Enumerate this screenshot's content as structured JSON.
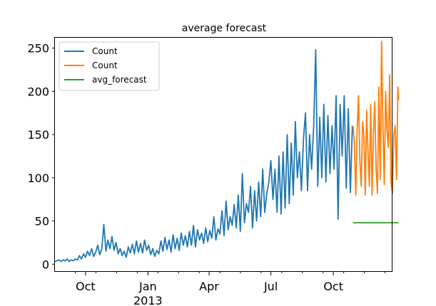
{
  "chart_data": {
    "type": "line",
    "title": "average forecast",
    "xlabel": "",
    "ylabel": "",
    "ylim": [
      -8,
      262
    ],
    "yticks": [
      0,
      50,
      100,
      150,
      200,
      250
    ],
    "x_range_days": [
      -15,
      481
    ],
    "xticks": [
      {
        "day": 30,
        "label": "Oct"
      },
      {
        "day": 122,
        "label": "Jan",
        "sublabel": "2013"
      },
      {
        "day": 212,
        "label": "Apr"
      },
      {
        "day": 303,
        "label": "Jul"
      },
      {
        "day": 395,
        "label": "Oct"
      }
    ],
    "x_start_date": "2012-08-16",
    "legend": {
      "position": "top-left",
      "entries": [
        "Count",
        "Count",
        "avg_forecast"
      ]
    },
    "grid": false,
    "series": [
      {
        "name": "Count",
        "color": "#1f77b4",
        "points": [
          [
            -15,
            3
          ],
          [
            -12,
            4
          ],
          [
            -9,
            5
          ],
          [
            -6,
            3
          ],
          [
            -3,
            5
          ],
          [
            0,
            4
          ],
          [
            3,
            6
          ],
          [
            6,
            3
          ],
          [
            9,
            5
          ],
          [
            12,
            4
          ],
          [
            15,
            6
          ],
          [
            18,
            5
          ],
          [
            21,
            10
          ],
          [
            24,
            6
          ],
          [
            27,
            12
          ],
          [
            30,
            8
          ],
          [
            33,
            15
          ],
          [
            36,
            10
          ],
          [
            39,
            18
          ],
          [
            42,
            9
          ],
          [
            45,
            14
          ],
          [
            48,
            22
          ],
          [
            51,
            11
          ],
          [
            54,
            18
          ],
          [
            57,
            46
          ],
          [
            60,
            15
          ],
          [
            63,
            28
          ],
          [
            66,
            18
          ],
          [
            69,
            32
          ],
          [
            72,
            16
          ],
          [
            75,
            25
          ],
          [
            78,
            12
          ],
          [
            81,
            18
          ],
          [
            84,
            10
          ],
          [
            87,
            15
          ],
          [
            90,
            8
          ],
          [
            93,
            20
          ],
          [
            96,
            13
          ],
          [
            99,
            23
          ],
          [
            102,
            12
          ],
          [
            105,
            27
          ],
          [
            108,
            14
          ],
          [
            111,
            24
          ],
          [
            114,
            13
          ],
          [
            117,
            28
          ],
          [
            120,
            16
          ],
          [
            123,
            22
          ],
          [
            126,
            11
          ],
          [
            129,
            18
          ],
          [
            132,
            9
          ],
          [
            135,
            16
          ],
          [
            138,
            12
          ],
          [
            141,
            27
          ],
          [
            144,
            15
          ],
          [
            147,
            31
          ],
          [
            150,
            17
          ],
          [
            153,
            28
          ],
          [
            156,
            14
          ],
          [
            159,
            34
          ],
          [
            162,
            18
          ],
          [
            165,
            30
          ],
          [
            168,
            16
          ],
          [
            171,
            36
          ],
          [
            174,
            22
          ],
          [
            177,
            33
          ],
          [
            180,
            20
          ],
          [
            183,
            38
          ],
          [
            186,
            22
          ],
          [
            189,
            45
          ],
          [
            192,
            20
          ],
          [
            195,
            40
          ],
          [
            198,
            28
          ],
          [
            201,
            36
          ],
          [
            204,
            24
          ],
          [
            207,
            42
          ],
          [
            210,
            26
          ],
          [
            213,
            39
          ],
          [
            216,
            30
          ],
          [
            219,
            55
          ],
          [
            222,
            28
          ],
          [
            225,
            41
          ],
          [
            228,
            35
          ],
          [
            231,
            62
          ],
          [
            234,
            33
          ],
          [
            237,
            73
          ],
          [
            240,
            40
          ],
          [
            243,
            55
          ],
          [
            246,
            45
          ],
          [
            249,
            69
          ],
          [
            252,
            42
          ],
          [
            255,
            80
          ],
          [
            258,
            38
          ],
          [
            261,
            105
          ],
          [
            264,
            48
          ],
          [
            267,
            70
          ],
          [
            270,
            60
          ],
          [
            273,
            90
          ],
          [
            276,
            42
          ],
          [
            279,
            85
          ],
          [
            282,
            50
          ],
          [
            285,
            95
          ],
          [
            288,
            55
          ],
          [
            291,
            110
          ],
          [
            294,
            60
          ],
          [
            297,
            82
          ],
          [
            300,
            95
          ],
          [
            303,
            120
          ],
          [
            306,
            75
          ],
          [
            309,
            110
          ],
          [
            312,
            60
          ],
          [
            315,
            125
          ],
          [
            318,
            58
          ],
          [
            321,
            130
          ],
          [
            324,
            65
          ],
          [
            327,
            150
          ],
          [
            330,
            70
          ],
          [
            333,
            140
          ],
          [
            336,
            80
          ],
          [
            339,
            165
          ],
          [
            342,
            100
          ],
          [
            345,
            130
          ],
          [
            348,
            85
          ],
          [
            351,
            145
          ],
          [
            354,
            175
          ],
          [
            357,
            85
          ],
          [
            360,
            150
          ],
          [
            363,
            110
          ],
          [
            366,
            160
          ],
          [
            369,
            248
          ],
          [
            372,
            90
          ],
          [
            375,
            170
          ],
          [
            378,
            100
          ],
          [
            381,
            185
          ],
          [
            384,
            95
          ],
          [
            387,
            172
          ],
          [
            390,
            105
          ],
          [
            393,
            160
          ],
          [
            396,
            110
          ],
          [
            399,
            195
          ],
          [
            402,
            52
          ],
          [
            405,
            185
          ],
          [
            408,
            125
          ],
          [
            411,
            195
          ],
          [
            414,
            88
          ],
          [
            417,
            180
          ],
          [
            420,
            83
          ],
          [
            423,
            160
          ]
        ]
      },
      {
        "name": "Count",
        "color": "#ff7f0e",
        "points": [
          [
            424,
            160
          ],
          [
            426,
            138
          ],
          [
            428,
            80
          ],
          [
            430,
            155
          ],
          [
            432,
            195
          ],
          [
            434,
            120
          ],
          [
            436,
            90
          ],
          [
            438,
            165
          ],
          [
            440,
            150
          ],
          [
            442,
            80
          ],
          [
            444,
            178
          ],
          [
            446,
            130
          ],
          [
            448,
            90
          ],
          [
            450,
            185
          ],
          [
            452,
            80
          ],
          [
            454,
            150
          ],
          [
            456,
            188
          ],
          [
            458,
            110
          ],
          [
            460,
            82
          ],
          [
            462,
            205
          ],
          [
            464,
            98
          ],
          [
            466,
            258
          ],
          [
            468,
            160
          ],
          [
            470,
            92
          ],
          [
            472,
            200
          ],
          [
            474,
            155
          ],
          [
            476,
            135
          ],
          [
            478,
            219
          ],
          [
            480,
            95
          ],
          [
            482,
            82
          ],
          [
            484,
            150
          ],
          [
            486,
            160
          ],
          [
            488,
            98
          ],
          [
            490,
            205
          ],
          [
            491,
            190
          ]
        ]
      },
      {
        "name": "avg_forecast",
        "color": "#2ca02c",
        "points": [
          [
            424,
            48
          ],
          [
            491,
            48
          ]
        ]
      }
    ]
  }
}
